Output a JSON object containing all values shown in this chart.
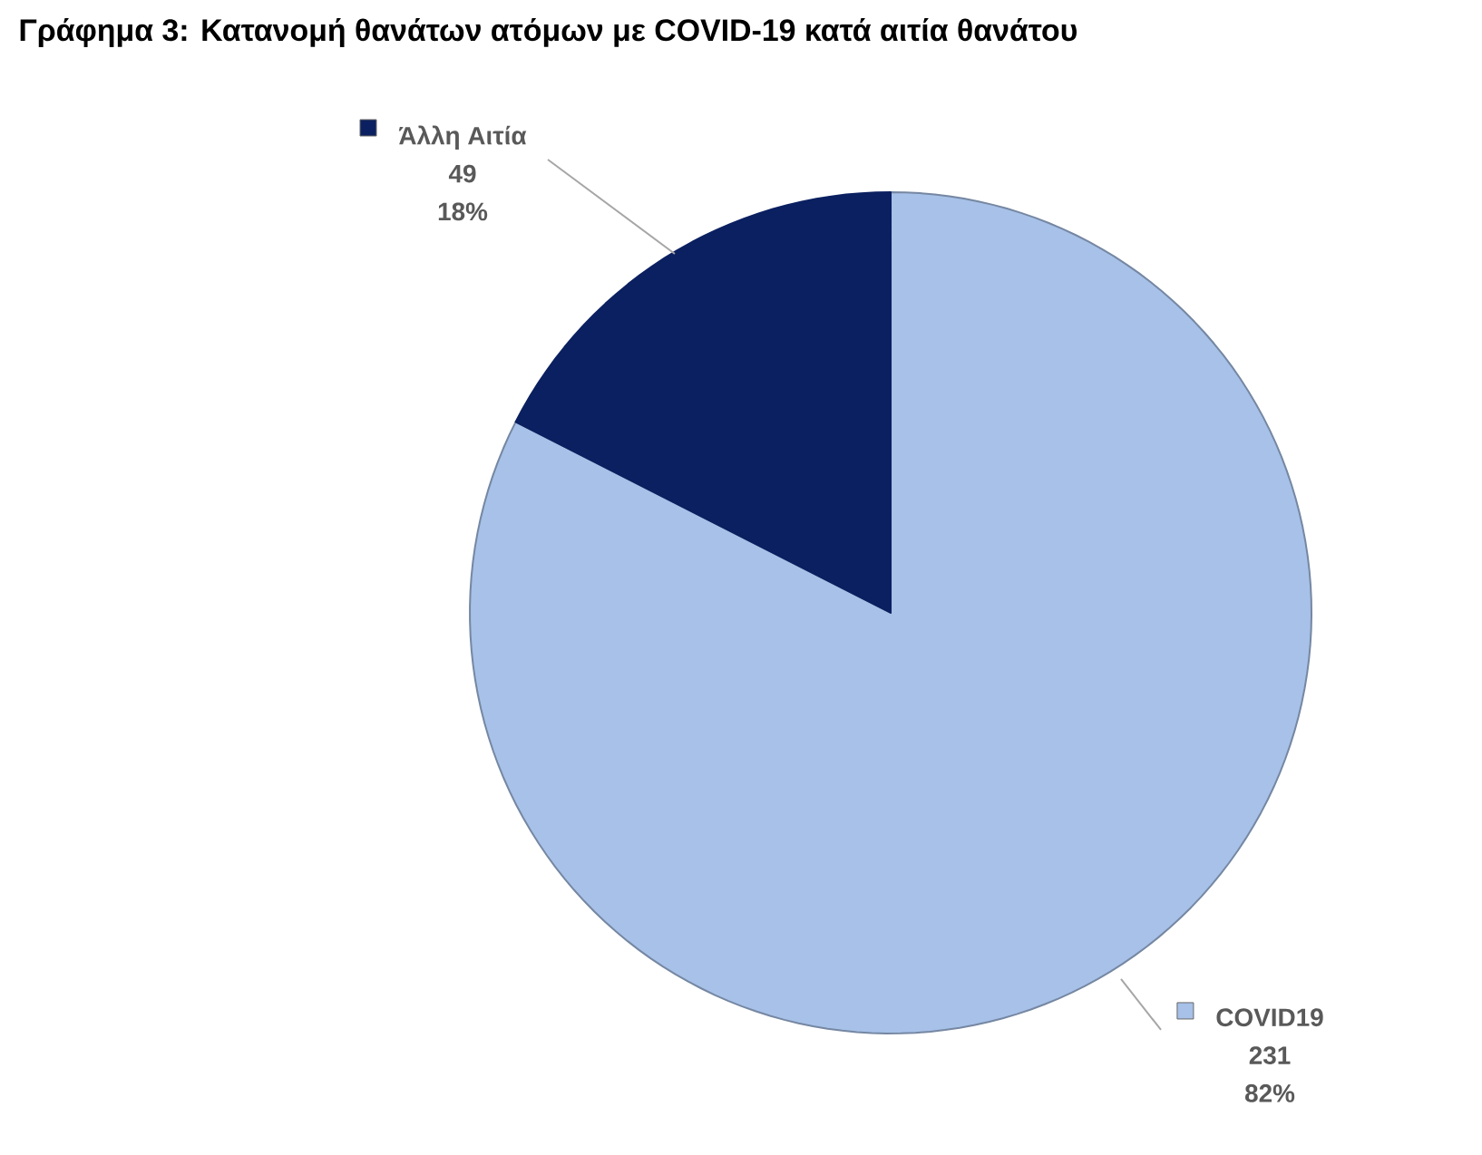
{
  "chart_data": {
    "type": "pie",
    "title": "Γράφημα 3: Κατανομή θανάτων ατόμων με COVID-19 κατά αιτία θανάτου",
    "categories": [
      "COVID19",
      "Άλλη Αιτία"
    ],
    "values": [
      231,
      49
    ],
    "colors": [
      "#a7c1e8",
      "#0b2060"
    ],
    "data_labels": true,
    "legend": "top left",
    "annotations": [
      "82%",
      "18%"
    ]
  }
}
